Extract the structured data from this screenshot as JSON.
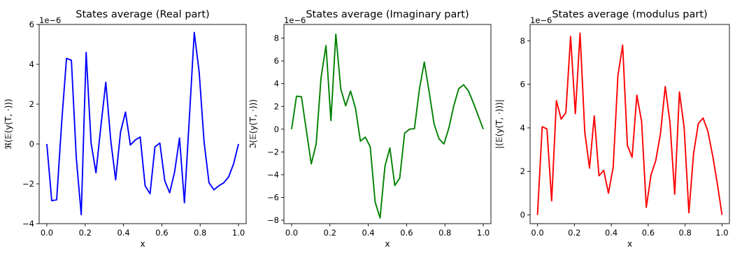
{
  "chart_data": [
    {
      "type": "line",
      "title": "States average (Real part)",
      "xlabel": "x",
      "ylabel": "ℜ(𝔼(y(T, ·)))",
      "offset_text": "1e−6",
      "xlim": [
        -0.04,
        1.04
      ],
      "ylim": [
        -4.0,
        6.0
      ],
      "xticks": [
        0.0,
        0.2,
        0.4,
        0.6,
        0.8,
        1.0
      ],
      "xtick_labels": [
        "0.0",
        "0.2",
        "0.4",
        "0.6",
        "0.8",
        "1.0"
      ],
      "yticks": [
        -4,
        -2,
        0,
        2,
        4,
        6
      ],
      "ytick_labels": [
        "−4",
        "−2",
        "0",
        "2",
        "4",
        "6"
      ],
      "color": "#0000ff",
      "x": [
        0.0,
        0.0256,
        0.0513,
        0.0769,
        0.1026,
        0.1282,
        0.1538,
        0.1795,
        0.2051,
        0.2308,
        0.2564,
        0.2821,
        0.3077,
        0.3333,
        0.359,
        0.3846,
        0.4103,
        0.4359,
        0.4615,
        0.4872,
        0.5128,
        0.5385,
        0.5641,
        0.5897,
        0.6154,
        0.641,
        0.6667,
        0.6923,
        0.7179,
        0.7436,
        0.7692,
        0.7949,
        0.8205,
        0.8462,
        0.8718,
        0.8974,
        0.9231,
        0.9487,
        0.9744,
        1.0
      ],
      "y": [
        0.0,
        -2.85,
        -2.8,
        1.0,
        4.3,
        4.2,
        -0.7,
        -3.55,
        4.6,
        0.05,
        -1.45,
        0.9,
        3.1,
        0.2,
        -1.8,
        0.6,
        1.6,
        -0.05,
        0.2,
        0.35,
        -2.1,
        -2.5,
        -0.15,
        0.05,
        -1.85,
        -2.45,
        -1.4,
        0.3,
        -2.95,
        1.3,
        5.6,
        3.6,
        0.1,
        -1.95,
        -2.3,
        -2.1,
        -1.95,
        -1.65,
        -1.0,
        0.0
      ]
    },
    {
      "type": "line",
      "title": "States average (Imaginary part)",
      "xlabel": "x",
      "ylabel": "ℑ(𝔼(y(T, ·)))",
      "offset_text": "1e−6",
      "xlim": [
        -0.04,
        1.04
      ],
      "ylim": [
        -8.3,
        9.2
      ],
      "xticks": [
        0.0,
        0.2,
        0.4,
        0.6,
        0.8,
        1.0
      ],
      "xtick_labels": [
        "0.0",
        "0.2",
        "0.4",
        "0.6",
        "0.8",
        "1.0"
      ],
      "yticks": [
        -8,
        -6,
        -4,
        -2,
        0,
        2,
        4,
        6,
        8
      ],
      "ytick_labels": [
        "−8",
        "−6",
        "−4",
        "−2",
        "0",
        "2",
        "4",
        "6",
        "8"
      ],
      "color": "#008000",
      "x": [
        0.0,
        0.0256,
        0.0513,
        0.0769,
        0.1026,
        0.1282,
        0.1538,
        0.1795,
        0.2051,
        0.2308,
        0.2564,
        0.2821,
        0.3077,
        0.3333,
        0.359,
        0.3846,
        0.4103,
        0.4359,
        0.4615,
        0.4872,
        0.5128,
        0.5385,
        0.5641,
        0.5897,
        0.6154,
        0.641,
        0.6667,
        0.6923,
        0.7179,
        0.7436,
        0.7692,
        0.7949,
        0.8205,
        0.8462,
        0.8718,
        0.8974,
        0.9231,
        0.9487,
        0.9744,
        1.0
      ],
      "y": [
        0.0,
        2.9,
        2.85,
        -0.1,
        -3.05,
        -1.3,
        4.55,
        7.35,
        0.75,
        8.35,
        3.55,
        2.05,
        3.35,
        1.85,
        -1.05,
        -0.7,
        -1.55,
        -6.4,
        -7.8,
        -3.25,
        -1.65,
        -4.95,
        -4.3,
        -0.35,
        0.0,
        0.05,
        3.5,
        5.9,
        3.25,
        0.45,
        -0.85,
        -1.3,
        0.1,
        2.05,
        3.55,
        3.9,
        3.35,
        2.3,
        1.15,
        0.0
      ]
    },
    {
      "type": "line",
      "title": "States average (modulus part)",
      "xlabel": "x",
      "ylabel": "|(𝔼(y(T, ·)))|",
      "offset_text": "1e−6",
      "xlim": [
        -0.04,
        1.04
      ],
      "ylim": [
        -0.4,
        8.75
      ],
      "xticks": [
        0.0,
        0.2,
        0.4,
        0.6,
        0.8,
        1.0
      ],
      "xtick_labels": [
        "0.0",
        "0.2",
        "0.4",
        "0.6",
        "0.8",
        "1.0"
      ],
      "yticks": [
        0,
        2,
        4,
        6,
        8
      ],
      "ytick_labels": [
        "0",
        "2",
        "4",
        "6",
        "8"
      ],
      "color": "#ff0000",
      "x": [
        0.0,
        0.0256,
        0.0513,
        0.0769,
        0.1026,
        0.1282,
        0.1538,
        0.1795,
        0.2051,
        0.2308,
        0.2564,
        0.2821,
        0.3077,
        0.3333,
        0.359,
        0.3846,
        0.4103,
        0.4359,
        0.4615,
        0.4872,
        0.5128,
        0.5385,
        0.5641,
        0.5897,
        0.6154,
        0.641,
        0.6667,
        0.6923,
        0.7179,
        0.7436,
        0.7692,
        0.7949,
        0.8205,
        0.8462,
        0.8718,
        0.8974,
        0.9231,
        0.9487,
        0.9744,
        1.0
      ],
      "y": [
        0.0,
        4.05,
        3.95,
        0.65,
        5.25,
        4.4,
        4.7,
        8.2,
        4.65,
        8.35,
        3.8,
        2.15,
        4.55,
        1.8,
        2.05,
        1.0,
        2.2,
        6.4,
        7.8,
        3.2,
        2.65,
        5.5,
        4.3,
        0.35,
        1.85,
        2.5,
        3.75,
        5.9,
        4.25,
        0.95,
        5.65,
        4.0,
        0.1,
        2.85,
        4.2,
        4.45,
        3.85,
        2.75,
        1.45,
        0.0
      ]
    }
  ]
}
